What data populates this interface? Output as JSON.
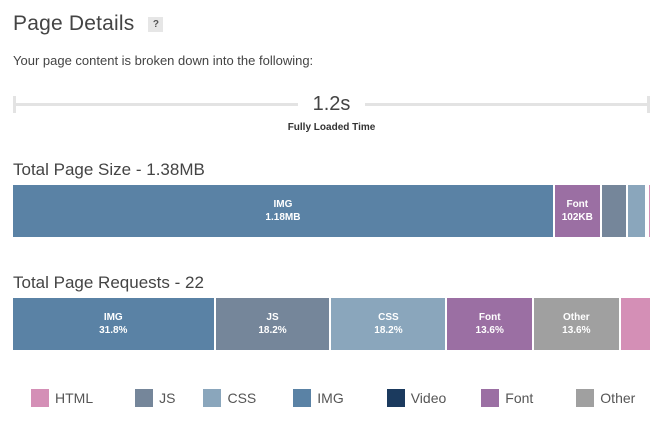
{
  "header": {
    "title": "Page Details",
    "help": "?"
  },
  "intro": "Your page content is broken down into the following:",
  "timeline": {
    "value": "1.2s",
    "label": "Fully Loaded Time"
  },
  "colors": {
    "HTML": "#d48fb6",
    "JS": "#75869a",
    "CSS": "#8aa6bc",
    "IMG": "#5a82a5",
    "Video": "#1b3a5e",
    "Font": "#9b6fa3",
    "Other": "#a0a0a0"
  },
  "size": {
    "title": "Total Page Size - 1.38MB",
    "segments": [
      {
        "type": "IMG",
        "label": "IMG",
        "value": "1.18MB",
        "share": 0.855
      },
      {
        "type": "Font",
        "label": "Font",
        "value": "102KB",
        "share": 0.074
      },
      {
        "type": "JS",
        "label": "",
        "value": "",
        "share": 0.042
      },
      {
        "type": "CSS",
        "label": "",
        "value": "",
        "share": 0.029
      },
      {
        "type": "Other",
        "label": "",
        "value": "",
        "share": 0.002
      },
      {
        "type": "HTML",
        "label": "",
        "value": "",
        "share": 0.002
      }
    ]
  },
  "requests": {
    "title": "Total Page Requests - 22",
    "segments": [
      {
        "type": "IMG",
        "label": "IMG",
        "value": "31.8%",
        "share": 0.318
      },
      {
        "type": "JS",
        "label": "JS",
        "value": "18.2%",
        "share": 0.182
      },
      {
        "type": "CSS",
        "label": "CSS",
        "value": "18.2%",
        "share": 0.182
      },
      {
        "type": "Font",
        "label": "Font",
        "value": "13.6%",
        "share": 0.136
      },
      {
        "type": "Other",
        "label": "Other",
        "value": "13.6%",
        "share": 0.136
      },
      {
        "type": "HTML",
        "label": "",
        "value": "",
        "share": 0.046
      }
    ]
  },
  "legend": [
    {
      "label": "HTML",
      "type": "HTML"
    },
    {
      "label": "JS",
      "type": "JS"
    },
    {
      "label": "CSS",
      "type": "CSS"
    },
    {
      "label": "IMG",
      "type": "IMG"
    },
    {
      "label": "Video",
      "type": "Video"
    },
    {
      "label": "Font",
      "type": "Font"
    },
    {
      "label": "Other",
      "type": "Other"
    }
  ]
}
